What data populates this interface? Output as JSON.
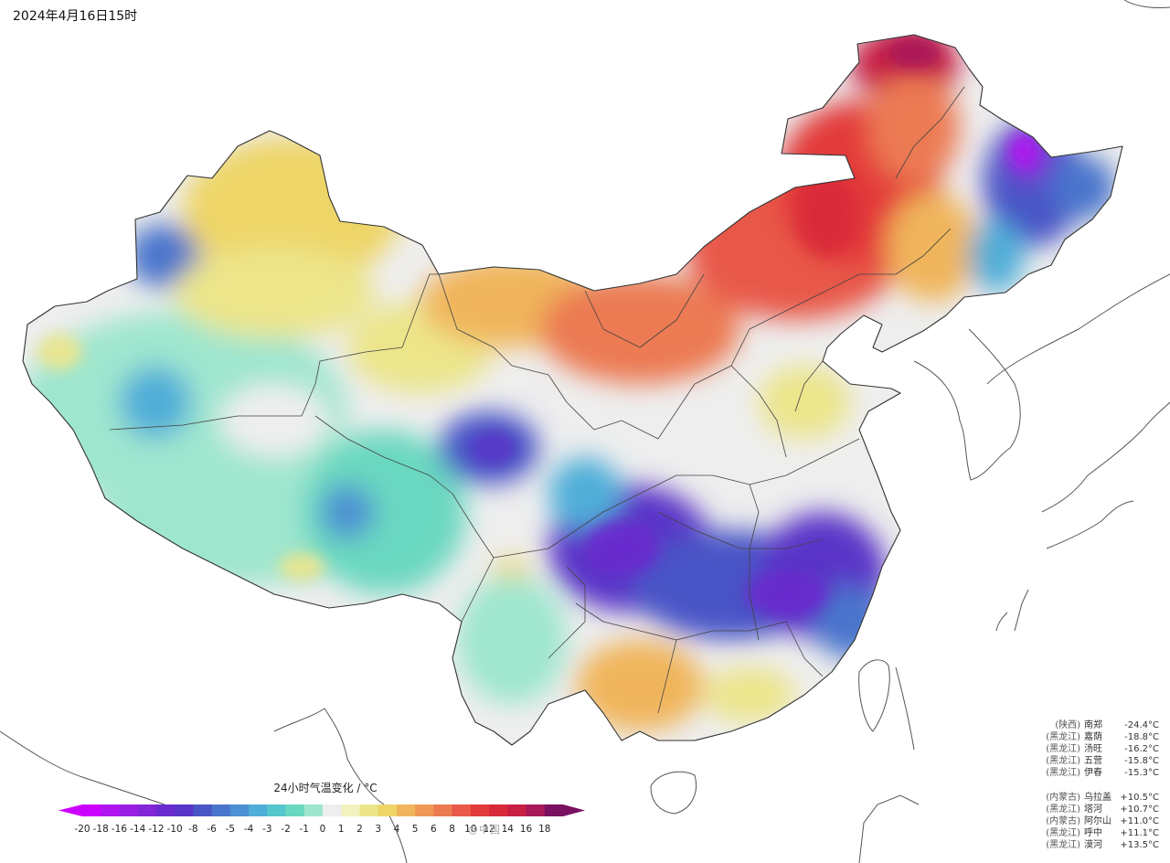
{
  "header": {
    "timestamp": "2024年4月16日15时"
  },
  "legend": {
    "title": "24小时气温变化 / °C",
    "labels": [
      "-20",
      "-18",
      "-16",
      "-14",
      "-12",
      "-10",
      "-8",
      "-6",
      "-5",
      "-4",
      "-3",
      "-2",
      "-1",
      "0",
      "1",
      "2",
      "3",
      "4",
      "5",
      "6",
      "8",
      "10",
      "12",
      "14",
      "16",
      "18"
    ],
    "colors": [
      "#cc00ff",
      "#b014f0",
      "#9a1fe3",
      "#8226d8",
      "#6a2bce",
      "#5a36c8",
      "#4a55c6",
      "#4a75cc",
      "#4d90d3",
      "#4faed8",
      "#55c7cc",
      "#6ad8c0",
      "#9fe6cf",
      "#eeeeee",
      "#f2f2c0",
      "#ece58a",
      "#eed568",
      "#f0b55c",
      "#ef9856",
      "#ec7a52",
      "#e8594a",
      "#e33b3b",
      "#d82a3a",
      "#c81f45",
      "#a8195a",
      "#7a1060"
    ],
    "color_scale": "24h temperature change diverging: magenta/purple = strong cooling, blue/cyan = cooling, grey = ~0, yellow/orange/red = warming"
  },
  "stations": {
    "cooling": [
      {
        "province": "(陕西)",
        "name": "南郑",
        "value": "-24.4°C"
      },
      {
        "province": "(黑龙江)",
        "name": "嘉荫",
        "value": "-18.8°C"
      },
      {
        "province": "(黑龙江)",
        "name": "汤旺",
        "value": "-16.2°C"
      },
      {
        "province": "(黑龙江)",
        "name": "五营",
        "value": "-15.8°C"
      },
      {
        "province": "(黑龙江)",
        "name": "伊春",
        "value": "-15.3°C"
      }
    ],
    "warming": [
      {
        "province": "(内蒙古)",
        "name": "乌拉盖",
        "value": "+10.5°C"
      },
      {
        "province": "(黑龙江)",
        "name": "塔河",
        "value": "+10.7°C"
      },
      {
        "province": "(内蒙古)",
        "name": "阿尔山",
        "value": "+11.0°C"
      },
      {
        "province": "(黑龙江)",
        "name": "呼中",
        "value": "+11.1°C"
      },
      {
        "province": "(黑龙江)",
        "name": "漠河",
        "value": "+13.5°C"
      }
    ]
  },
  "watermark": "@中国"
}
